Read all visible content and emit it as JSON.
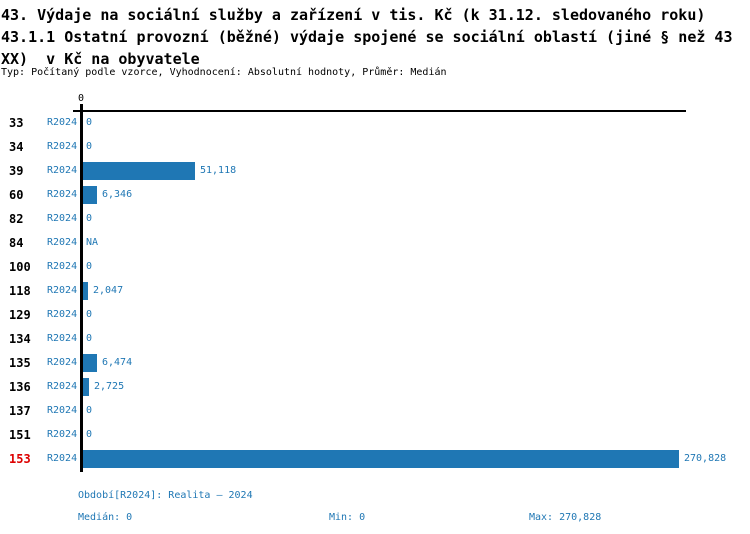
{
  "title": {
    "line1": "43. Výdaje na sociální služby a zařízení v tis. Kč (k 31.12. sledovaného roku)",
    "line2": "43.1.1 Ostatní provozní (běžné) výdaje spojené se sociální oblastí (jiné § než 43",
    "line3": "XX)  v Kč na obyvatele",
    "meta": "Typ: Počítaný podle vzorce, Vyhodnocení: Absolutní hodnoty, Průměr: Medián"
  },
  "chart_data": {
    "type": "bar",
    "orientation": "horizontal",
    "series_label": "R2024",
    "categories": [
      "33",
      "34",
      "39",
      "60",
      "82",
      "84",
      "100",
      "118",
      "129",
      "134",
      "135",
      "136",
      "137",
      "151",
      "153"
    ],
    "values": [
      0,
      0,
      51118,
      6346,
      0,
      null,
      0,
      2047,
      0,
      0,
      6474,
      2725,
      0,
      0,
      270828
    ],
    "value_labels": [
      "0",
      "0",
      "51,118",
      "6,346",
      "0",
      "NA",
      "0",
      "2,047",
      "0",
      "0",
      "6,474",
      "2,725",
      "0",
      "0",
      "270,828"
    ],
    "highlighted_category": "153",
    "axis": {
      "tick_label": "0",
      "xlim": [
        0,
        272500
      ],
      "grid": false
    },
    "legend_position": "none",
    "colors": {
      "bar": "#1f77b4",
      "value_text": "#1f77b4",
      "series_text": "#1f77b4",
      "category_text": "#000000",
      "highlight_text": "#dd0000",
      "axis": "#000000"
    }
  },
  "footer": {
    "period": "Období[R2024]: Realita – 2024",
    "median": "Medián: 0",
    "min": "Min: 0",
    "max": "Max: 270,828"
  }
}
